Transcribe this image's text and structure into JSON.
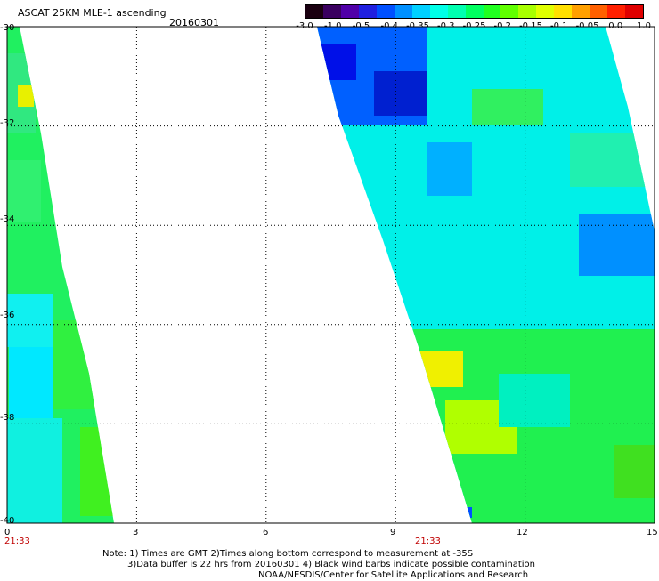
{
  "header": {
    "title": "ASCAT 25KM MLE-1 ascending",
    "date": "20160301"
  },
  "colorbar": {
    "labels": [
      "-3.0",
      "-1.0",
      "-0.5",
      "-0.4",
      "-0.35",
      "-0.3",
      "-0.25",
      "-0.2",
      "-0.15",
      "-0.1",
      "-0.05",
      "0.0",
      "1.0"
    ],
    "colors": [
      "#1a0010",
      "#3a0060",
      "#5000a8",
      "#2020e0",
      "#0050ff",
      "#0090ff",
      "#00d0ff",
      "#00ffe8",
      "#00ffb0",
      "#00ff60",
      "#20ff20",
      "#60ff00",
      "#a8ff00",
      "#e0ff00",
      "#ffe000",
      "#ffa000",
      "#ff6000",
      "#ff2000",
      "#e00000"
    ]
  },
  "map": {
    "lat_ticks": [
      "-30",
      "-32",
      "-34",
      "-36",
      "-38",
      "-40"
    ],
    "lon_ticks": [
      "0",
      "3",
      "6",
      "9",
      "12",
      "15"
    ],
    "time_labels": [
      "21:33",
      "21:33"
    ],
    "lat_range": [
      -40,
      -30
    ],
    "lon_range": [
      0,
      15
    ]
  },
  "notes": {
    "line1": "Note: 1) Times are GMT 2)Times along bottom correspond to measurement at -35S",
    "line2": "3)Data buffer is 22 hrs from 20160301 4) Black wind barbs indicate possible contamination",
    "line3": "NOAA/NESDIS/Center for Satellite Applications and Research"
  }
}
